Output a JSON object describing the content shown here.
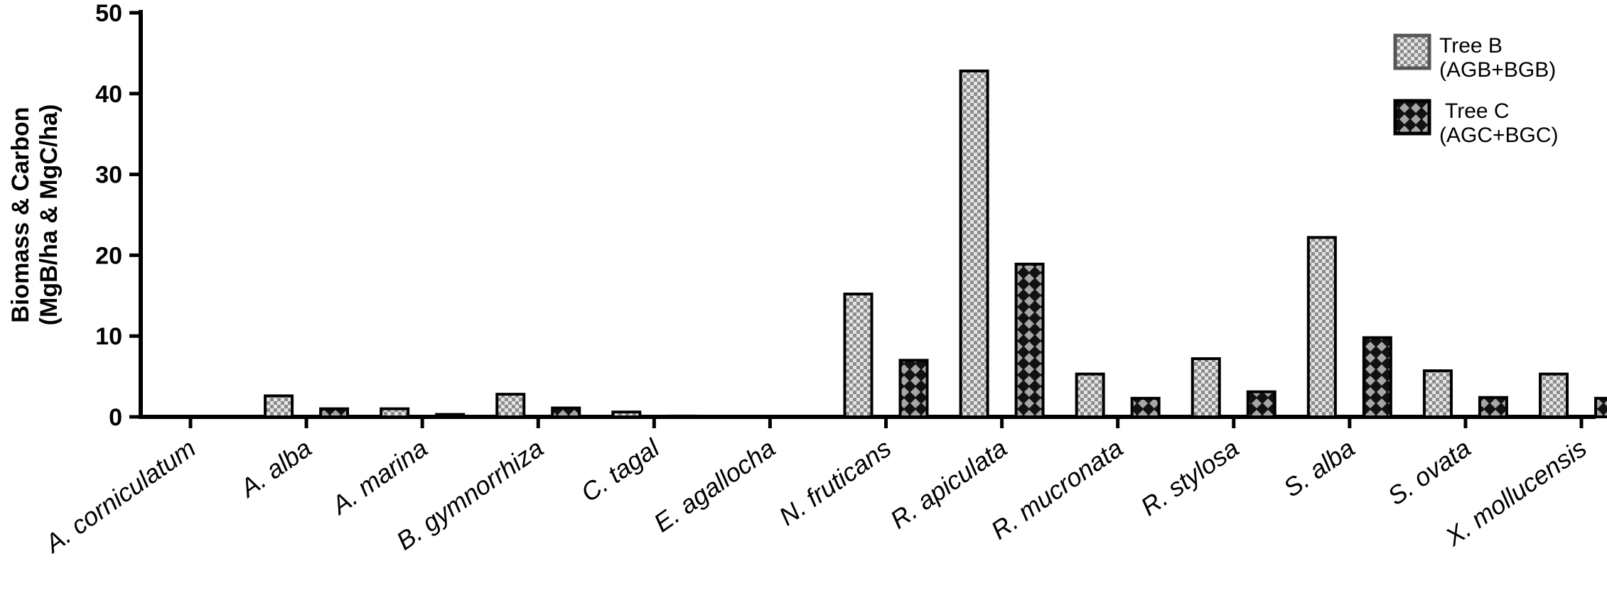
{
  "chart_data": {
    "type": "bar",
    "title": "",
    "xlabel": "",
    "ylabel": [
      "Biomass & Carbon",
      "(MgB/ha & MgC/ha)"
    ],
    "ylim": [
      0,
      50
    ],
    "yticks": [
      0,
      10,
      20,
      30,
      40,
      50
    ],
    "grid": false,
    "legend_position": "top-right",
    "categories": [
      "A. corniculatum",
      "A. alba",
      "A. marina",
      "B. gymnorrhiza",
      "C. tagal",
      "E. agallocha",
      "N. fruticans",
      "R. apiculata",
      "R. mucronata",
      "R. stylosa",
      "S. alba",
      "S. ovata",
      "X. mollucensis"
    ],
    "series": [
      {
        "name": [
          "Tree B",
          "(AGB+BGB)"
        ],
        "pattern": "checker",
        "color": "#9a9a9a",
        "values": [
          0,
          2.6,
          1.0,
          2.8,
          0.6,
          0,
          15.2,
          42.8,
          5.3,
          7.2,
          22.2,
          5.7,
          5.3
        ]
      },
      {
        "name": [
          "Tree C",
          "(AGC+BGC)"
        ],
        "pattern": "diamond",
        "color": "#333333",
        "values": [
          0,
          1.0,
          0.3,
          1.1,
          0.1,
          0,
          7.0,
          18.9,
          2.3,
          3.1,
          9.8,
          2.4,
          2.3
        ]
      }
    ]
  }
}
